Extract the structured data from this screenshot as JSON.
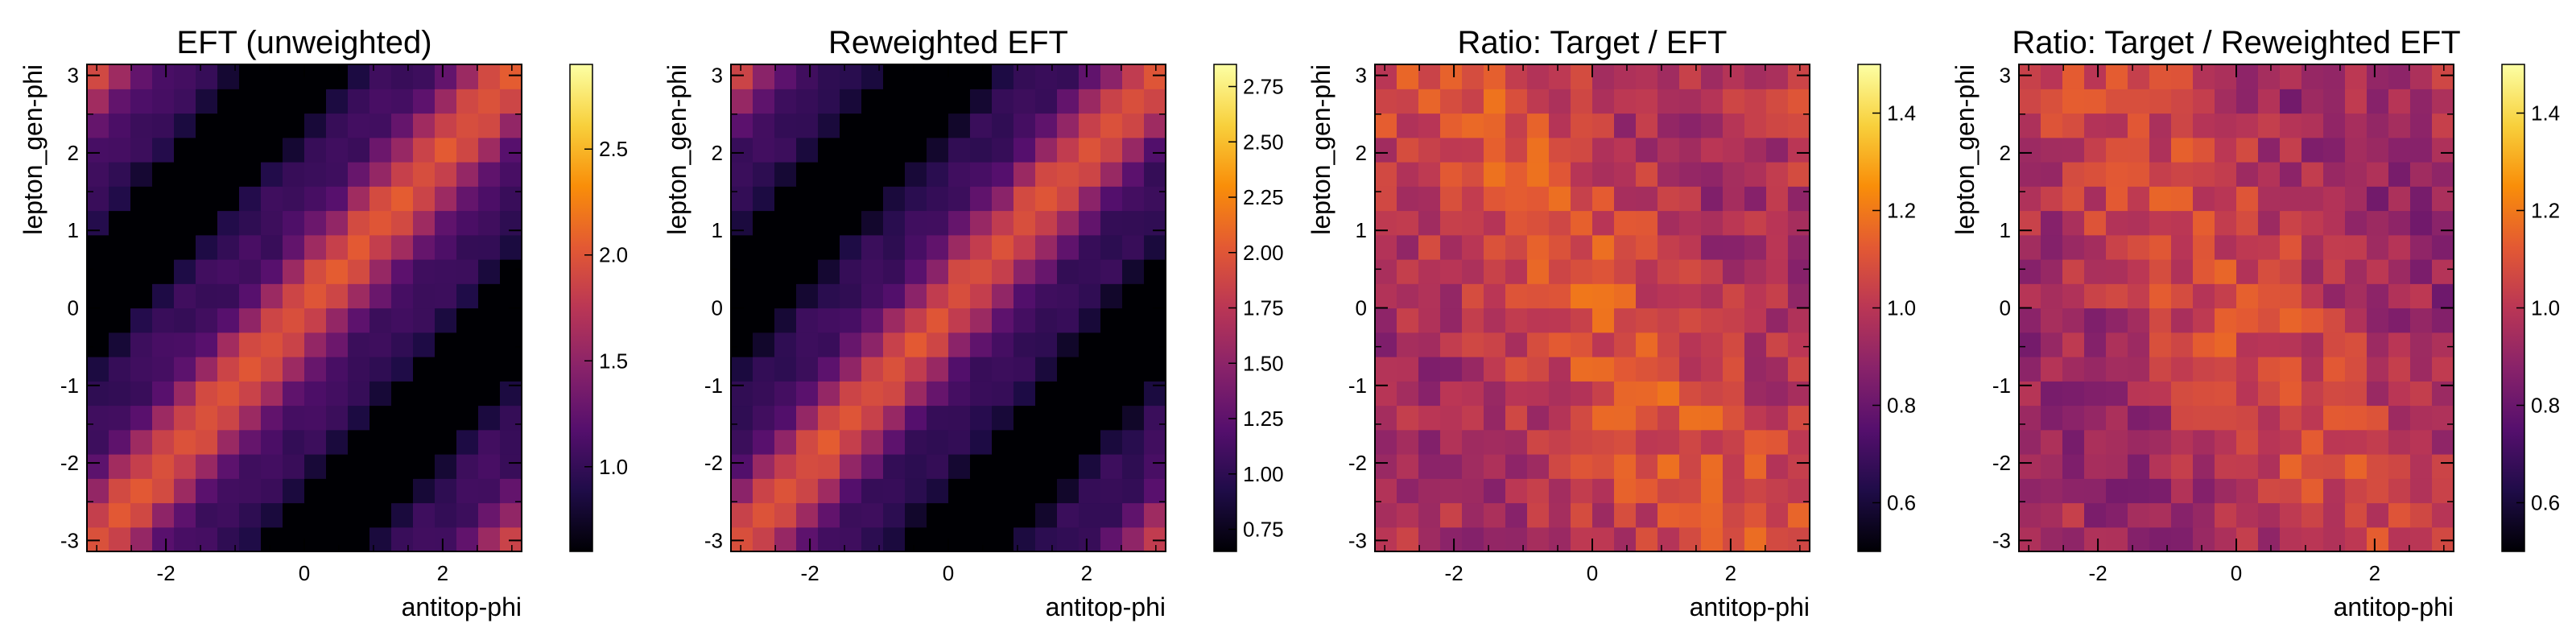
{
  "chart_data": [
    {
      "type": "heatmap",
      "title": "EFT (unweighted)",
      "xlabel": "antitop-phi",
      "ylabel": "lepton_gen-phi",
      "x_ticks": [
        "-2",
        "0",
        "2"
      ],
      "y_ticks": [
        "-3",
        "-2",
        "-1",
        "0",
        "1",
        "2",
        "3"
      ],
      "xlim": [
        -3.1416,
        3.1416
      ],
      "ylim": [
        -3.1416,
        3.1416
      ],
      "bins": 20,
      "colormap": "inferno",
      "zlim": [
        0.6,
        2.9
      ],
      "colorbar_ticks": [
        "1.0",
        "1.5",
        "2.0",
        "2.5"
      ],
      "pattern": "diagonal",
      "z_base": 1.05,
      "z_amp": 0.95,
      "z_power": 3,
      "noise_amp": 0.06,
      "seed": 11
    },
    {
      "type": "heatmap",
      "title": "Reweighted EFT",
      "xlabel": "antitop-phi",
      "ylabel": "lepton_gen-phi",
      "x_ticks": [
        "-2",
        "0",
        "2"
      ],
      "y_ticks": [
        "-3",
        "-2",
        "-1",
        "0",
        "1",
        "2",
        "3"
      ],
      "xlim": [
        -3.1416,
        3.1416
      ],
      "ylim": [
        -3.1416,
        3.1416
      ],
      "bins": 20,
      "colormap": "inferno",
      "zlim": [
        0.65,
        2.85
      ],
      "colorbar_ticks": [
        "0.75",
        "1.00",
        "1.25",
        "1.50",
        "1.75",
        "2.00",
        "2.25",
        "2.50",
        "2.75"
      ],
      "pattern": "diagonal",
      "z_base": 1.05,
      "z_amp": 0.93,
      "z_power": 3,
      "noise_amp": 0.06,
      "seed": 23
    },
    {
      "type": "heatmap",
      "title": "Ratio: Target / EFT",
      "xlabel": "antitop-phi",
      "ylabel": "lepton_gen-phi",
      "x_ticks": [
        "-2",
        "0",
        "2"
      ],
      "y_ticks": [
        "-3",
        "-2",
        "-1",
        "0",
        "1",
        "2",
        "3"
      ],
      "xlim": [
        -3.1416,
        3.1416
      ],
      "ylim": [
        -3.1416,
        3.1416
      ],
      "bins": 20,
      "colormap": "inferno",
      "zlim": [
        0.5,
        1.5
      ],
      "colorbar_ticks": [
        "0.6",
        "0.8",
        "1.0",
        "1.2",
        "1.4"
      ],
      "pattern": "ratio",
      "z_base": 1.02,
      "z_amp": 0.08,
      "z_power": 1,
      "noise_amp": 0.1,
      "seed": 37
    },
    {
      "type": "heatmap",
      "title": "Ratio: Target / Reweighted EFT",
      "xlabel": "antitop-phi",
      "ylabel": "lepton_gen-phi",
      "x_ticks": [
        "-2",
        "0",
        "2"
      ],
      "y_ticks": [
        "-3",
        "-2",
        "-1",
        "0",
        "1",
        "2",
        "3"
      ],
      "xlim": [
        -3.1416,
        3.1416
      ],
      "ylim": [
        -3.1416,
        3.1416
      ],
      "bins": 20,
      "colormap": "inferno",
      "zlim": [
        0.5,
        1.5
      ],
      "colorbar_ticks": [
        "0.6",
        "0.8",
        "1.0",
        "1.2",
        "1.4"
      ],
      "pattern": "ratio",
      "z_base": 0.99,
      "z_amp": 0.08,
      "z_power": 1,
      "noise_amp": 0.1,
      "seed": 53
    }
  ],
  "colormap_stops": [
    "#000004",
    "#1f0c48",
    "#550f6d",
    "#88226a",
    "#ba3655",
    "#e35933",
    "#f98e09",
    "#f8d03c",
    "#fcffa4"
  ]
}
